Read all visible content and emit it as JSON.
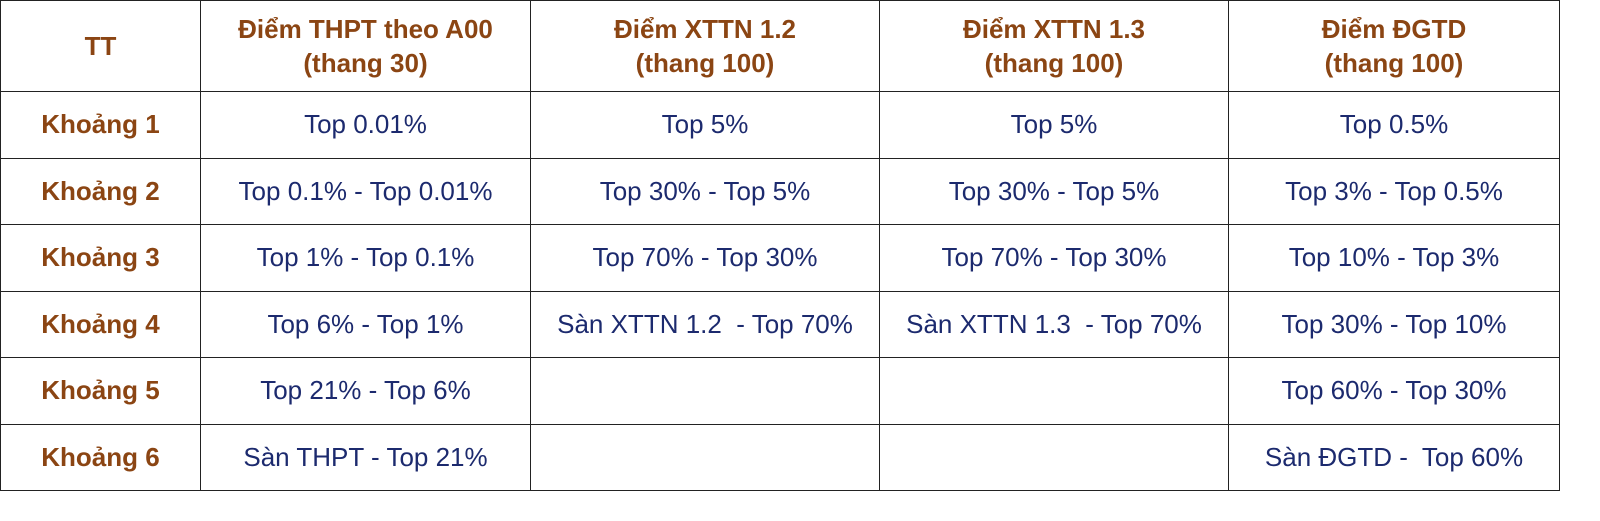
{
  "table": {
    "header": [
      [
        "TT"
      ],
      [
        "Điểm THPT theo A00",
        "(thang 30)"
      ],
      [
        "Điểm XTTN 1.2",
        "(thang 100)"
      ],
      [
        "Điểm XTTN 1.3",
        "(thang 100)"
      ],
      [
        "Điểm ĐGTD",
        "(thang 100)"
      ]
    ],
    "rows": [
      [
        "Khoảng 1",
        "Top 0.01%",
        "Top 5%",
        "Top 5%",
        "Top 0.5%"
      ],
      [
        "Khoảng 2",
        "Top 0.1% - Top 0.01%",
        "Top 30% - Top 5%",
        "Top 30% - Top 5%",
        "Top 3% - Top 0.5%"
      ],
      [
        "Khoảng 3",
        "Top 1% - Top 0.1%",
        "Top 70% - Top 30%",
        "Top 70% - Top 30%",
        "Top 10% - Top 3%"
      ],
      [
        "Khoảng 4",
        "Top 6% - Top 1%",
        "Sàn XTTN 1.2  - Top 70%",
        "Sàn XTTN 1.3  - Top 70%",
        "Top 30% - Top 10%"
      ],
      [
        "Khoảng 5",
        "Top 21% - Top 6%",
        null,
        null,
        "Top 60% - Top 30%"
      ],
      [
        "Khoảng 6",
        "Sàn THPT - Top 21%",
        null,
        null,
        "Sàn ĐGTD -  Top 60%"
      ]
    ]
  }
}
